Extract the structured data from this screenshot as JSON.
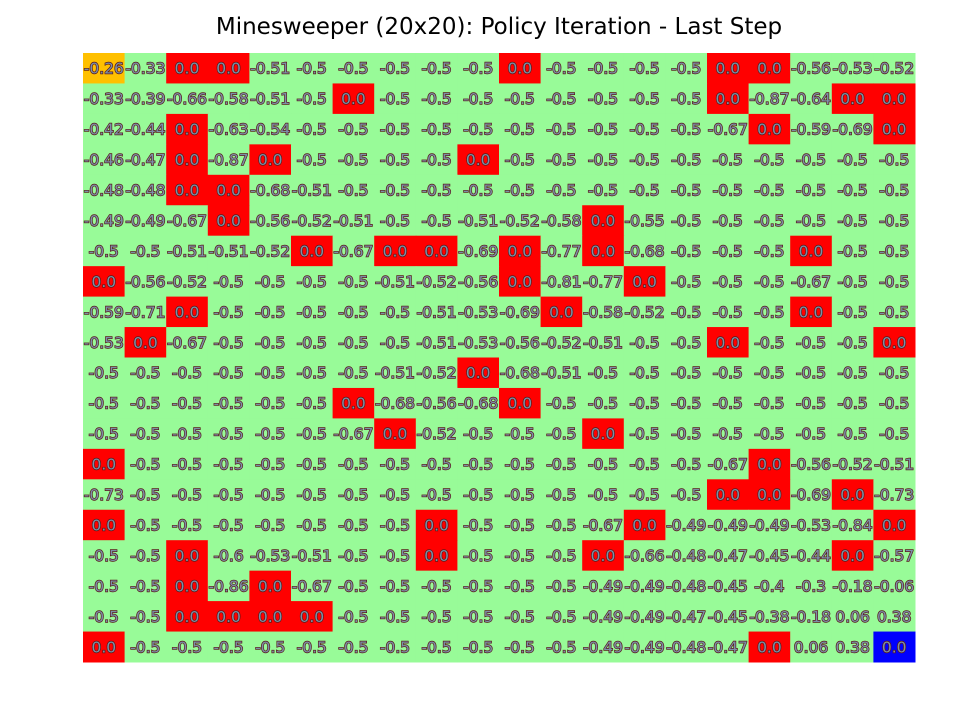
{
  "chart_data": {
    "type": "heatmap",
    "title": "Minesweeper (20x20): Policy Iteration - Last Step",
    "rows": 20,
    "cols": 20,
    "colors": {
      "safe": "#98fb98",
      "mine": "#ff0000",
      "start": "#ffc000",
      "goal": "#0000ff",
      "text": "#7b8fa8",
      "text_outline": "#5a1a1a"
    },
    "start_cell": [
      0,
      0
    ],
    "goal_cell": [
      19,
      19
    ],
    "mine_label": "0.0",
    "mines": [
      [
        0,
        2
      ],
      [
        0,
        3
      ],
      [
        0,
        10
      ],
      [
        0,
        15
      ],
      [
        0,
        16
      ],
      [
        1,
        6
      ],
      [
        1,
        15
      ],
      [
        1,
        18
      ],
      [
        1,
        19
      ],
      [
        2,
        2
      ],
      [
        2,
        16
      ],
      [
        2,
        19
      ],
      [
        3,
        2
      ],
      [
        3,
        4
      ],
      [
        3,
        9
      ],
      [
        4,
        2
      ],
      [
        4,
        3
      ],
      [
        5,
        3
      ],
      [
        5,
        12
      ],
      [
        6,
        5
      ],
      [
        6,
        7
      ],
      [
        6,
        8
      ],
      [
        6,
        10
      ],
      [
        6,
        12
      ],
      [
        6,
        17
      ],
      [
        7,
        0
      ],
      [
        7,
        10
      ],
      [
        7,
        13
      ],
      [
        8,
        2
      ],
      [
        8,
        11
      ],
      [
        8,
        17
      ],
      [
        9,
        1
      ],
      [
        9,
        15
      ],
      [
        9,
        19
      ],
      [
        10,
        9
      ],
      [
        11,
        6
      ],
      [
        11,
        10
      ],
      [
        12,
        7
      ],
      [
        12,
        12
      ],
      [
        13,
        0
      ],
      [
        13,
        16
      ],
      [
        14,
        15
      ],
      [
        14,
        16
      ],
      [
        14,
        18
      ],
      [
        15,
        0
      ],
      [
        15,
        8
      ],
      [
        15,
        13
      ],
      [
        15,
        19
      ],
      [
        16,
        2
      ],
      [
        16,
        8
      ],
      [
        16,
        12
      ],
      [
        16,
        18
      ],
      [
        17,
        2
      ],
      [
        17,
        4
      ],
      [
        18,
        2
      ],
      [
        18,
        3
      ],
      [
        18,
        4
      ],
      [
        18,
        5
      ],
      [
        19,
        0
      ],
      [
        19,
        16
      ],
      [
        19,
        19
      ]
    ],
    "values": [
      [
        "-0.26",
        "-0.33",
        "0.0",
        "0.0",
        "-0.51",
        "-0.5",
        "-0.5",
        "-0.5",
        "-0.5",
        "-0.5",
        "0.0",
        "-0.5",
        "-0.5",
        "-0.5",
        "-0.5",
        "0.0",
        "0.0",
        "-0.56",
        "-0.53",
        "-0.52"
      ],
      [
        "-0.33",
        "-0.39",
        "-0.66",
        "-0.58",
        "-0.51",
        "-0.5",
        "0.0",
        "-0.5",
        "-0.5",
        "-0.5",
        "-0.5",
        "-0.5",
        "-0.5",
        "-0.5",
        "-0.5",
        "0.0",
        "-0.87",
        "-0.64",
        "0.0",
        "0.0"
      ],
      [
        "-0.42",
        "-0.44",
        "0.0",
        "-0.63",
        "-0.54",
        "-0.5",
        "-0.5",
        "-0.5",
        "-0.5",
        "-0.5",
        "-0.5",
        "-0.5",
        "-0.5",
        "-0.5",
        "-0.5",
        "-0.67",
        "0.0",
        "-0.59",
        "-0.69",
        "0.0"
      ],
      [
        "-0.46",
        "-0.47",
        "0.0",
        "-0.87",
        "0.0",
        "-0.5",
        "-0.5",
        "-0.5",
        "-0.5",
        "0.0",
        "-0.5",
        "-0.5",
        "-0.5",
        "-0.5",
        "-0.5",
        "-0.5",
        "-0.5",
        "-0.5",
        "-0.5",
        "-0.5"
      ],
      [
        "-0.48",
        "-0.48",
        "0.0",
        "0.0",
        "-0.68",
        "-0.51",
        "-0.5",
        "-0.5",
        "-0.5",
        "-0.5",
        "-0.5",
        "-0.5",
        "-0.5",
        "-0.5",
        "-0.5",
        "-0.5",
        "-0.5",
        "-0.5",
        "-0.5",
        "-0.5"
      ],
      [
        "-0.49",
        "-0.49",
        "-0.67",
        "0.0",
        "-0.56",
        "-0.52",
        "-0.51",
        "-0.5",
        "-0.5",
        "-0.51",
        "-0.52",
        "-0.58",
        "0.0",
        "-0.55",
        "-0.5",
        "-0.5",
        "-0.5",
        "-0.5",
        "-0.5",
        "-0.5"
      ],
      [
        "-0.5",
        "-0.5",
        "-0.51",
        "-0.51",
        "-0.52",
        "0.0",
        "-0.67",
        "0.0",
        "0.0",
        "-0.69",
        "0.0",
        "-0.77",
        "0.0",
        "-0.68",
        "-0.5",
        "-0.5",
        "-0.5",
        "0.0",
        "-0.5",
        "-0.5"
      ],
      [
        "0.0",
        "-0.56",
        "-0.52",
        "-0.5",
        "-0.5",
        "-0.5",
        "-0.5",
        "-0.51",
        "-0.52",
        "-0.56",
        "0.0",
        "-0.81",
        "-0.77",
        "0.0",
        "-0.5",
        "-0.5",
        "-0.5",
        "-0.67",
        "-0.5",
        "-0.5"
      ],
      [
        "-0.59",
        "-0.71",
        "0.0",
        "-0.5",
        "-0.5",
        "-0.5",
        "-0.5",
        "-0.5",
        "-0.51",
        "-0.53",
        "-0.69",
        "0.0",
        "-0.58",
        "-0.52",
        "-0.5",
        "-0.5",
        "-0.5",
        "0.0",
        "-0.5",
        "-0.5"
      ],
      [
        "-0.53",
        "0.0",
        "-0.67",
        "-0.5",
        "-0.5",
        "-0.5",
        "-0.5",
        "-0.5",
        "-0.51",
        "-0.53",
        "-0.56",
        "-0.52",
        "-0.51",
        "-0.5",
        "-0.5",
        "0.0",
        "-0.5",
        "-0.5",
        "-0.5",
        "0.0"
      ],
      [
        "-0.5",
        "-0.5",
        "-0.5",
        "-0.5",
        "-0.5",
        "-0.5",
        "-0.5",
        "-0.51",
        "-0.52",
        "0.0",
        "-0.68",
        "-0.51",
        "-0.5",
        "-0.5",
        "-0.5",
        "-0.5",
        "-0.5",
        "-0.5",
        "-0.5",
        "-0.5"
      ],
      [
        "-0.5",
        "-0.5",
        "-0.5",
        "-0.5",
        "-0.5",
        "-0.5",
        "0.0",
        "-0.68",
        "-0.56",
        "-0.68",
        "0.0",
        "-0.5",
        "-0.5",
        "-0.5",
        "-0.5",
        "-0.5",
        "-0.5",
        "-0.5",
        "-0.5",
        "-0.5"
      ],
      [
        "-0.5",
        "-0.5",
        "-0.5",
        "-0.5",
        "-0.5",
        "-0.5",
        "-0.67",
        "0.0",
        "-0.52",
        "-0.5",
        "-0.5",
        "-0.5",
        "0.0",
        "-0.5",
        "-0.5",
        "-0.5",
        "-0.5",
        "-0.5",
        "-0.5",
        "-0.5"
      ],
      [
        "0.0",
        "-0.5",
        "-0.5",
        "-0.5",
        "-0.5",
        "-0.5",
        "-0.5",
        "-0.5",
        "-0.5",
        "-0.5",
        "-0.5",
        "-0.5",
        "-0.5",
        "-0.5",
        "-0.5",
        "-0.67",
        "0.0",
        "-0.56",
        "-0.52",
        "-0.51"
      ],
      [
        "-0.73",
        "-0.5",
        "-0.5",
        "-0.5",
        "-0.5",
        "-0.5",
        "-0.5",
        "-0.5",
        "-0.5",
        "-0.5",
        "-0.5",
        "-0.5",
        "-0.5",
        "-0.5",
        "-0.5",
        "0.0",
        "0.0",
        "-0.69",
        "0.0",
        "-0.73"
      ],
      [
        "0.0",
        "-0.5",
        "-0.5",
        "-0.5",
        "-0.5",
        "-0.5",
        "-0.5",
        "-0.5",
        "0.0",
        "-0.5",
        "-0.5",
        "-0.5",
        "-0.67",
        "0.0",
        "-0.49",
        "-0.49",
        "-0.49",
        "-0.53",
        "-0.84",
        "0.0"
      ],
      [
        "-0.5",
        "-0.5",
        "0.0",
        "-0.6",
        "-0.53",
        "-0.51",
        "-0.5",
        "-0.5",
        "0.0",
        "-0.5",
        "-0.5",
        "-0.5",
        "0.0",
        "-0.66",
        "-0.48",
        "-0.47",
        "-0.45",
        "-0.44",
        "0.0",
        "-0.57"
      ],
      [
        "-0.5",
        "-0.5",
        "0.0",
        "-0.86",
        "0.0",
        "-0.67",
        "-0.5",
        "-0.5",
        "-0.5",
        "-0.5",
        "-0.5",
        "-0.5",
        "-0.49",
        "-0.49",
        "-0.48",
        "-0.45",
        "-0.4",
        "-0.3",
        "-0.18",
        "-0.06"
      ],
      [
        "-0.5",
        "-0.5",
        "0.0",
        "0.0",
        "0.0",
        "0.0",
        "-0.5",
        "-0.5",
        "-0.5",
        "-0.5",
        "-0.5",
        "-0.5",
        "-0.49",
        "-0.49",
        "-0.47",
        "-0.45",
        "-0.38",
        "-0.18",
        "0.06",
        "0.38"
      ],
      [
        "0.0",
        "-0.5",
        "-0.5",
        "-0.5",
        "-0.5",
        "-0.5",
        "-0.5",
        "-0.5",
        "-0.5",
        "-0.5",
        "-0.5",
        "-0.5",
        "-0.49",
        "-0.49",
        "-0.48",
        "-0.47",
        "0.0",
        "0.06",
        "0.38",
        "0.0"
      ]
    ]
  }
}
